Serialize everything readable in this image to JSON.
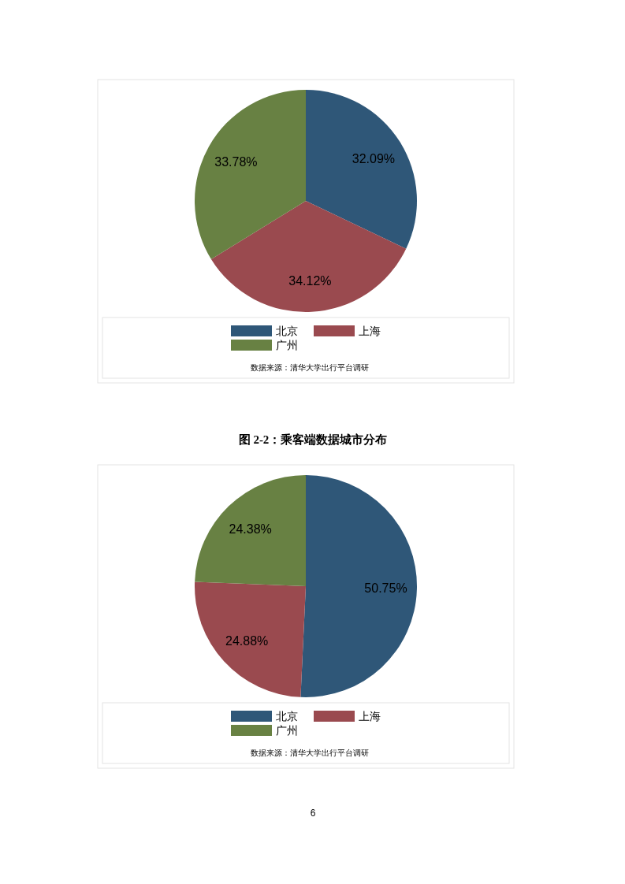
{
  "chart_data": [
    {
      "type": "pie",
      "categories": [
        "北京",
        "上海",
        "广州"
      ],
      "values": [
        32.09,
        34.12,
        33.78
      ],
      "colors": [
        "#2f5778",
        "#9a4a4f",
        "#688143"
      ],
      "value_labels": [
        "32.09%",
        "34.12%",
        "33.78%"
      ],
      "legend": "bottom",
      "annotations": [
        "数据来源：清华大学出行平台调研"
      ]
    },
    {
      "type": "pie",
      "title": "图 2-2：乘客端数据城市分布",
      "categories": [
        "北京",
        "上海",
        "广州"
      ],
      "values": [
        50.75,
        24.88,
        24.38
      ],
      "colors": [
        "#2f5778",
        "#9a4a4f",
        "#688143"
      ],
      "value_labels": [
        "50.75%",
        "24.88%",
        "24.38%"
      ],
      "legend": "bottom",
      "annotations": [
        "数据来源：清华大学出行平台调研",
        "6"
      ]
    }
  ]
}
